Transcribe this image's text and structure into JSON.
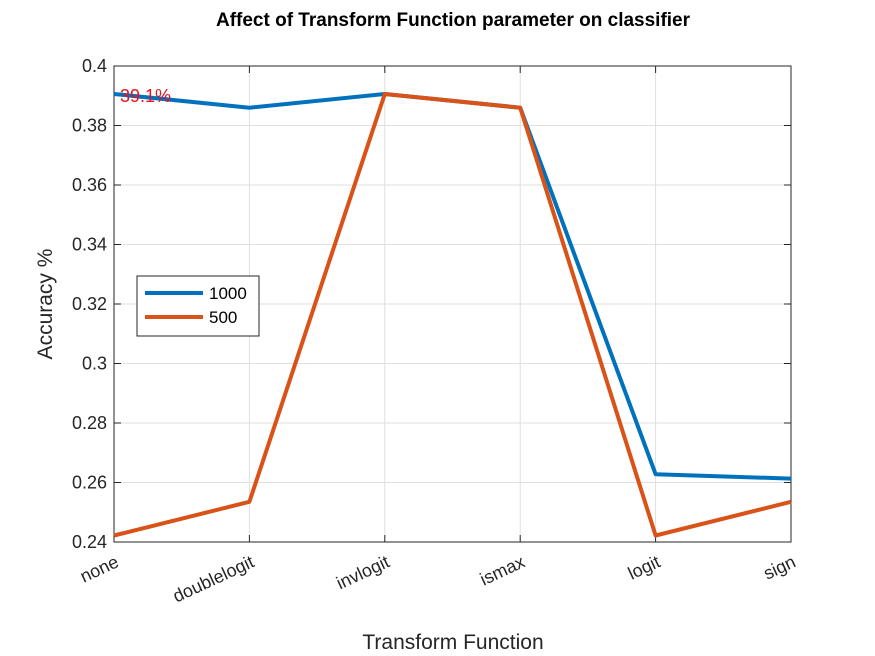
{
  "chart_data": {
    "type": "line",
    "title": "Affect of Transform Function parameter on classifier",
    "xlabel": "Transform Function",
    "ylabel": "Accuracy %",
    "categories": [
      "none",
      "doublelogit",
      "invlogit",
      "ismax",
      "logit",
      "sign"
    ],
    "ylim": [
      0.24,
      0.4
    ],
    "yticks": [
      0.24,
      0.26,
      0.28,
      0.3,
      0.32,
      0.34,
      0.36,
      0.38,
      0.4
    ],
    "ytick_labels": [
      "0.24",
      "0.26",
      "0.28",
      "0.3",
      "0.32",
      "0.34",
      "0.36",
      "0.38",
      "0.4"
    ],
    "grid": true,
    "legend_position": "left-middle",
    "series": [
      {
        "name": "1000",
        "color": "#0072BD",
        "values": [
          0.3906,
          0.386,
          0.3906,
          0.386,
          0.2628,
          0.2613
        ]
      },
      {
        "name": "500",
        "color": "#D95319",
        "values": [
          0.2422,
          0.2535,
          0.3906,
          0.386,
          0.2422,
          0.2535
        ]
      }
    ],
    "annotations": [
      {
        "text": "39.1%",
        "x": "none",
        "y": 0.3906,
        "color": "#E8121E"
      }
    ]
  }
}
